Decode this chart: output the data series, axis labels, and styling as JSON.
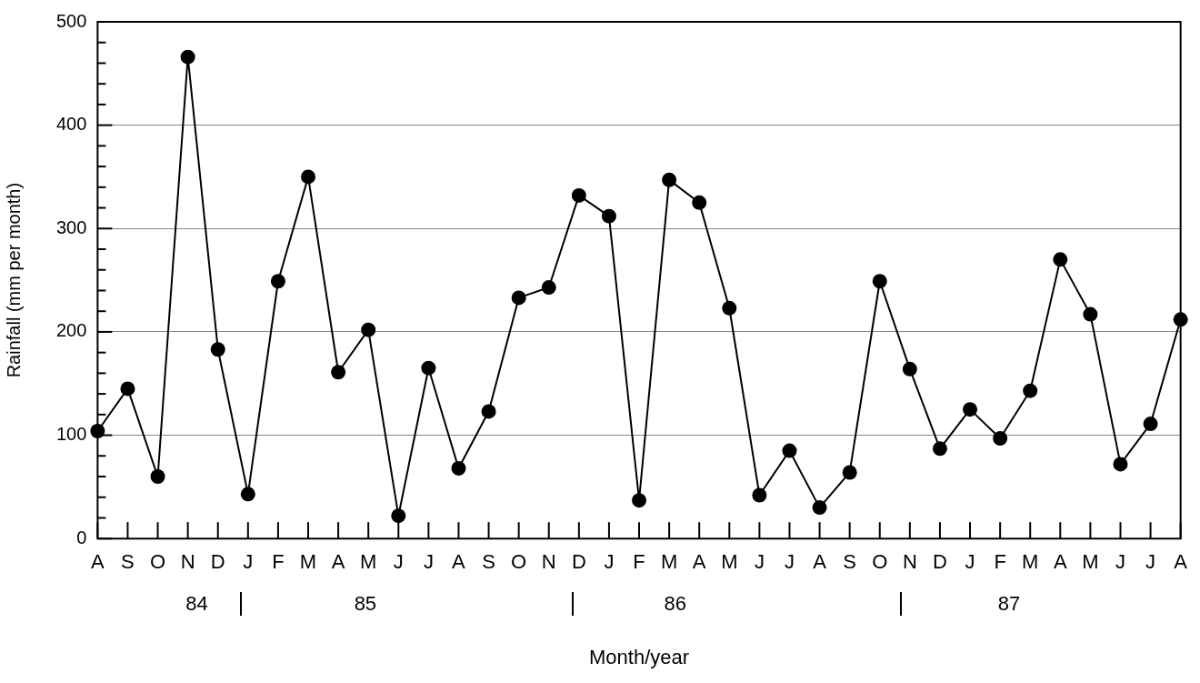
{
  "chart_data": {
    "type": "line",
    "xlabel": "Month/year",
    "ylabel": "Rainfall (mm per month)",
    "categories": [
      "A",
      "S",
      "O",
      "N",
      "D",
      "J",
      "F",
      "M",
      "A",
      "M",
      "J",
      "J",
      "A",
      "S",
      "O",
      "N",
      "D",
      "J",
      "F",
      "M",
      "A",
      "M",
      "J",
      "J",
      "A",
      "S",
      "O",
      "N",
      "D",
      "J",
      "F",
      "M",
      "A",
      "M",
      "J",
      "J",
      "A"
    ],
    "series": [
      {
        "color": "#000000",
        "values": [
          104,
          145,
          60,
          466,
          183,
          43,
          249,
          350,
          161,
          202,
          22,
          165,
          68,
          123,
          233,
          243,
          332,
          312,
          37,
          347,
          325,
          223,
          42,
          85,
          30,
          64,
          249,
          164,
          87,
          125,
          97,
          143,
          270,
          217,
          72,
          111,
          212
        ]
      }
    ],
    "ylim": [
      0,
      500
    ],
    "yticks": [
      0,
      {
        "value": 20,
        "label": null
      },
      {
        "value": 40,
        "label": null
      },
      {
        "value": 60,
        "label": null
      },
      {
        "value": 80,
        "label": null
      },
      100,
      {
        "value": 120,
        "label": null
      },
      {
        "value": 140,
        "label": null
      },
      {
        "value": 160,
        "label": null
      },
      {
        "value": 180,
        "label": null
      },
      200,
      {
        "value": 220,
        "label": null
      },
      {
        "value": 240,
        "label": null
      },
      {
        "value": 260,
        "label": null
      },
      {
        "value": 280,
        "label": null
      },
      300,
      {
        "value": 320,
        "label": null
      },
      {
        "value": 340,
        "label": null
      },
      {
        "value": 360,
        "label": null
      },
      {
        "value": 380,
        "label": null
      },
      400,
      {
        "value": 420,
        "label": null
      },
      {
        "value": 440,
        "label": null
      },
      {
        "value": 460,
        "label": null
      },
      {
        "value": 480,
        "label": null
      },
      500
    ],
    "grid": "y",
    "marker": "circle",
    "line_style": "solid",
    "legend": false,
    "annotations": [
      "84",
      "85",
      "86",
      "87"
    ]
  }
}
